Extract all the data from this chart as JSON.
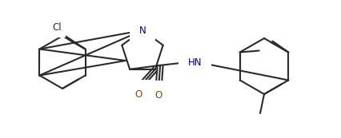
{
  "bg_color": "#ffffff",
  "bond_color": "#2b2b2b",
  "cl_color": "#2b2b2b",
  "o_color": "#8b4513",
  "n_color": "#00008b",
  "lw": 1.5,
  "dbs": 0.008,
  "figsize": [
    4.27,
    1.73
  ],
  "dpi": 100,
  "xlim": [
    0.0,
    4.27
  ],
  "ylim": [
    0.0,
    1.73
  ]
}
